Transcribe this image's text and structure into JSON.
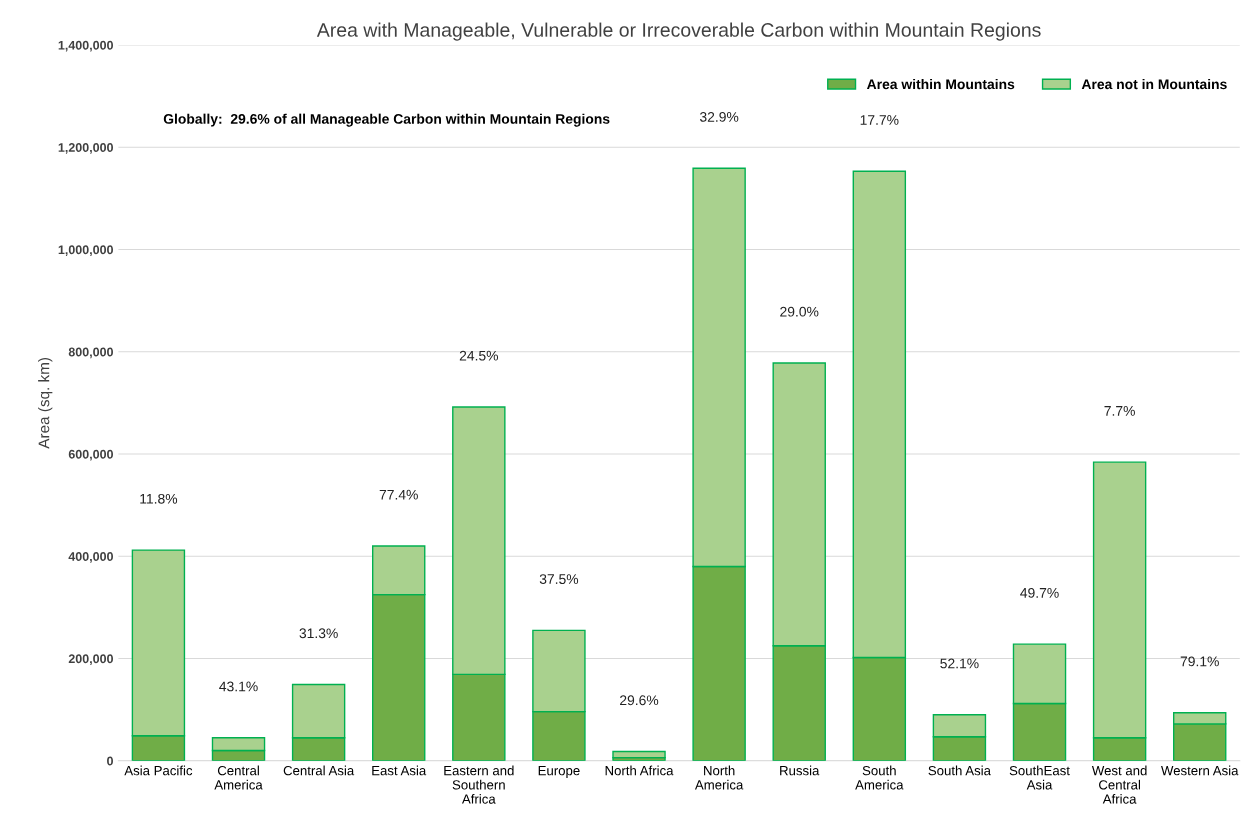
{
  "chart_data": {
    "type": "bar",
    "title": "Area with Manageable, Vulnerable or Irrecoverable Carbon within Mountain Regions",
    "ylabel": "Area (sq. km)",
    "stacked": true,
    "categories": [
      "Asia Pacific",
      "Central America",
      "Central Asia",
      "East Asia",
      "Eastern and Southern Africa",
      "Europe",
      "North Africa",
      "North America",
      "Russia",
      "South America",
      "South Asia",
      "SouthEast Asia",
      "West and Central Africa",
      "Western Asia"
    ],
    "series": [
      {
        "name": "Area within Mountains",
        "color": "#70ad47",
        "values": [
          49000,
          20000,
          45000,
          325000,
          169000,
          96000,
          6000,
          380000,
          225000,
          202000,
          47000,
          112000,
          45000,
          72000
        ]
      },
      {
        "name": "Area not in Mountains",
        "color": "#a9d18e",
        "values": [
          363000,
          25000,
          104000,
          95000,
          523000,
          159000,
          12000,
          779000,
          553000,
          951000,
          43000,
          116000,
          539000,
          22000
        ]
      }
    ],
    "ylim": [
      0,
      1400000
    ],
    "yticks": [
      {
        "value": 0,
        "label": "0"
      },
      {
        "value": 200000,
        "label": "200,000"
      },
      {
        "value": 400000,
        "label": "400,000"
      },
      {
        "value": 600000,
        "label": "600,000"
      },
      {
        "value": 800000,
        "label": "800,000"
      },
      {
        "value": 1000000,
        "label": "1,000,000"
      },
      {
        "value": 1200000,
        "label": "1,200,000"
      },
      {
        "value": 1400000,
        "label": "1,400,000"
      }
    ],
    "grid": "y",
    "legend": "top right",
    "annotations": [
      "Globally:  29.6% of all Manageable Carbon within Mountain Regions",
      "11.8%",
      "43.1%",
      "31.3%",
      "77.4%",
      "24.5%",
      "37.5%",
      "29.6%",
      "32.9%",
      "29.0%",
      "17.7%",
      "52.1%",
      "49.7%",
      "7.7%",
      "79.1%"
    ]
  }
}
